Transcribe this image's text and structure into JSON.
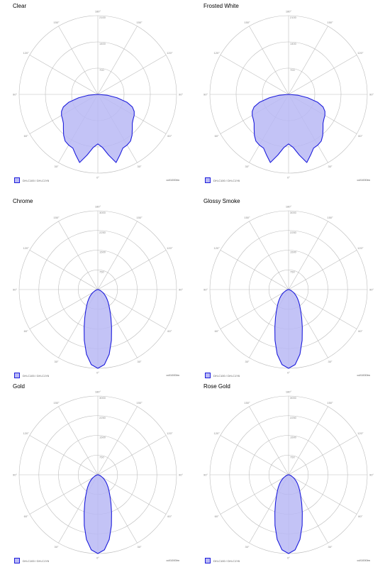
{
  "series_name": "DH-C100 / DH-C1Y6",
  "unit": "cd/1000lm",
  "colors": {
    "fill": "#b9b9f5",
    "stroke": "#1d1ddc",
    "grid": "#bdbdbd"
  },
  "chart_data": [
    {
      "type": "polar",
      "title": "Clear",
      "rlim": [
        0,
        2100
      ],
      "radial_ticks": [
        "700",
        "1400",
        "2100"
      ],
      "angle_ticks": [
        "180°",
        "150°",
        "120°",
        "90°",
        "60°",
        "30°",
        "0°",
        "30°",
        "60°",
        "90°",
        "120°",
        "150°"
      ],
      "series": [
        {
          "theta": [
            0,
            5,
            10,
            15,
            20,
            25,
            30,
            35,
            40,
            45,
            50,
            55,
            60,
            65,
            70,
            75,
            80,
            85,
            90
          ],
          "r": [
            1320,
            1420,
            1640,
            1880,
            1720,
            1580,
            1560,
            1520,
            1420,
            1300,
            1200,
            1150,
            1120,
            1070,
            980,
            800,
            520,
            250,
            0
          ]
        }
      ]
    },
    {
      "type": "polar",
      "title": "Frosted White",
      "rlim": [
        0,
        2100
      ],
      "radial_ticks": [
        "700",
        "1400",
        "2100"
      ],
      "angle_ticks": [
        "180°",
        "150°",
        "120°",
        "90°",
        "60°",
        "30°",
        "0°",
        "30°",
        "60°",
        "90°",
        "120°",
        "150°"
      ],
      "series": [
        {
          "theta": [
            0,
            5,
            10,
            15,
            20,
            25,
            30,
            35,
            40,
            45,
            50,
            55,
            60,
            65,
            70,
            75,
            80,
            85,
            90
          ],
          "r": [
            1320,
            1420,
            1640,
            1880,
            1720,
            1580,
            1560,
            1520,
            1420,
            1300,
            1200,
            1150,
            1120,
            1070,
            980,
            800,
            520,
            250,
            0
          ]
        }
      ]
    },
    {
      "type": "polar",
      "title": "Chrome",
      "rlim": [
        0,
        3000
      ],
      "radial_ticks": [
        "750",
        "1500",
        "2250",
        "3000"
      ],
      "angle_ticks": [
        "180°",
        "150°",
        "120°",
        "90°",
        "60°",
        "30°",
        "0°",
        "30°",
        "60°",
        "90°",
        "120°",
        "150°"
      ],
      "series": [
        {
          "theta": [
            0,
            5,
            10,
            15,
            20,
            25,
            30,
            35,
            40,
            45,
            50,
            55,
            60,
            70,
            80,
            90
          ],
          "r": [
            3000,
            2870,
            2500,
            2000,
            1530,
            1180,
            920,
            740,
            600,
            480,
            380,
            290,
            210,
            100,
            35,
            0
          ]
        }
      ]
    },
    {
      "type": "polar",
      "title": "Glossy Smoke",
      "rlim": [
        0,
        3000
      ],
      "radial_ticks": [
        "750",
        "1500",
        "2250",
        "3000"
      ],
      "angle_ticks": [
        "180°",
        "150°",
        "120°",
        "90°",
        "60°",
        "30°",
        "0°",
        "30°",
        "60°",
        "90°",
        "120°",
        "150°"
      ],
      "series": [
        {
          "theta": [
            0,
            5,
            10,
            15,
            20,
            25,
            30,
            35,
            40,
            45,
            50,
            55,
            60,
            70,
            80,
            90
          ],
          "r": [
            3000,
            2870,
            2500,
            2000,
            1530,
            1180,
            920,
            740,
            600,
            480,
            380,
            290,
            210,
            100,
            35,
            0
          ]
        }
      ]
    },
    {
      "type": "polar",
      "title": "Gold",
      "rlim": [
        0,
        3000
      ],
      "radial_ticks": [
        "750",
        "1500",
        "2250",
        "3000"
      ],
      "angle_ticks": [
        "180°",
        "150°",
        "120°",
        "90°",
        "60°",
        "30°",
        "0°",
        "30°",
        "60°",
        "90°",
        "120°",
        "150°"
      ],
      "series": [
        {
          "theta": [
            0,
            5,
            10,
            15,
            20,
            25,
            30,
            35,
            40,
            45,
            50,
            55,
            60,
            70,
            80,
            90
          ],
          "r": [
            3000,
            2870,
            2500,
            2000,
            1530,
            1180,
            920,
            740,
            600,
            480,
            380,
            290,
            210,
            100,
            35,
            0
          ]
        }
      ]
    },
    {
      "type": "polar",
      "title": "Rose Gold",
      "rlim": [
        0,
        3000
      ],
      "radial_ticks": [
        "750",
        "1500",
        "2250",
        "3000"
      ],
      "angle_ticks": [
        "180°",
        "150°",
        "120°",
        "90°",
        "60°",
        "30°",
        "0°",
        "30°",
        "60°",
        "90°",
        "120°",
        "150°"
      ],
      "series": [
        {
          "theta": [
            0,
            5,
            10,
            15,
            20,
            25,
            30,
            35,
            40,
            45,
            50,
            55,
            60,
            70,
            80,
            90
          ],
          "r": [
            3000,
            2870,
            2500,
            2000,
            1530,
            1180,
            920,
            740,
            600,
            480,
            380,
            290,
            210,
            100,
            35,
            0
          ]
        }
      ]
    }
  ]
}
